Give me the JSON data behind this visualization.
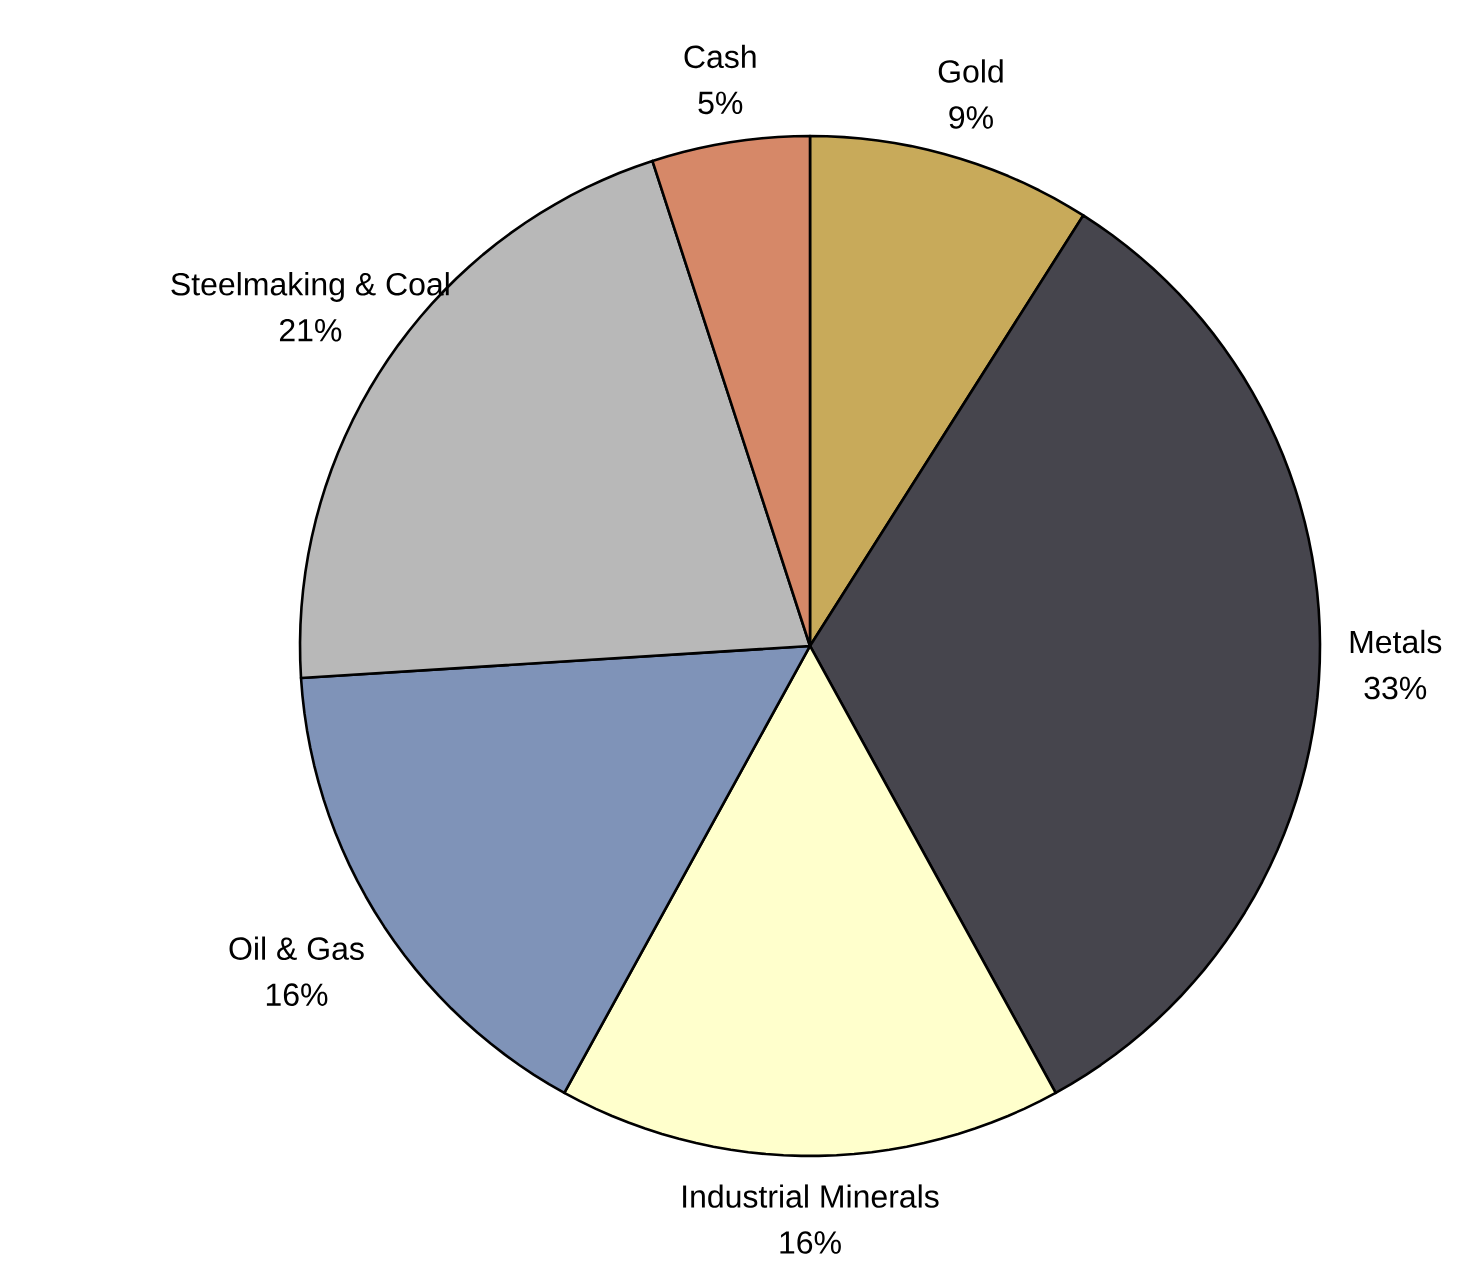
{
  "chart_data": {
    "type": "pie",
    "categories": [
      "Gold",
      "Metals",
      "Industrial Minerals",
      "Oil & Gas",
      "Steelmaking & Coal",
      "Cash"
    ],
    "values": [
      9,
      33,
      16,
      16,
      21,
      5
    ],
    "value_labels": [
      "9%",
      "33%",
      "16%",
      "16%",
      "21%",
      "5%"
    ],
    "colors": [
      "#c8aa5a",
      "#46454d",
      "#ffffcc",
      "#7f93b8",
      "#b8b8b8",
      "#d68868"
    ],
    "legend": false
  }
}
